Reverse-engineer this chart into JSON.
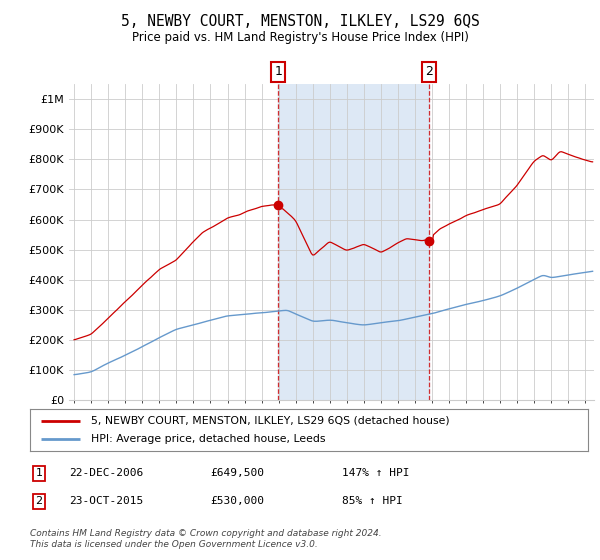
{
  "title": "5, NEWBY COURT, MENSTON, ILKLEY, LS29 6QS",
  "subtitle": "Price paid vs. HM Land Registry's House Price Index (HPI)",
  "ylabel_ticks": [
    "£0",
    "£100K",
    "£200K",
    "£300K",
    "£400K",
    "£500K",
    "£600K",
    "£700K",
    "£800K",
    "£900K",
    "£1M"
  ],
  "ytick_values": [
    0,
    100000,
    200000,
    300000,
    400000,
    500000,
    600000,
    700000,
    800000,
    900000,
    1000000
  ],
  "ylim": [
    0,
    1050000
  ],
  "xlim_start": 1995.0,
  "xlim_end": 2025.5,
  "sale1_x": 2006.97,
  "sale1_y": 649500,
  "sale2_x": 2015.81,
  "sale2_y": 530000,
  "legend_line1": "5, NEWBY COURT, MENSTON, ILKLEY, LS29 6QS (detached house)",
  "legend_line2": "HPI: Average price, detached house, Leeds",
  "annotation1_label": "1",
  "annotation1_date": "22-DEC-2006",
  "annotation1_price": "£649,500",
  "annotation1_hpi": "147% ↑ HPI",
  "annotation2_label": "2",
  "annotation2_date": "23-OCT-2015",
  "annotation2_price": "£530,000",
  "annotation2_hpi": "85% ↑ HPI",
  "footer": "Contains HM Land Registry data © Crown copyright and database right 2024.\nThis data is licensed under the Open Government Licence v3.0.",
  "red_color": "#cc0000",
  "blue_color": "#6699cc",
  "shade_color": "#dde8f5",
  "background_color": "#ffffff",
  "grid_color": "#cccccc"
}
